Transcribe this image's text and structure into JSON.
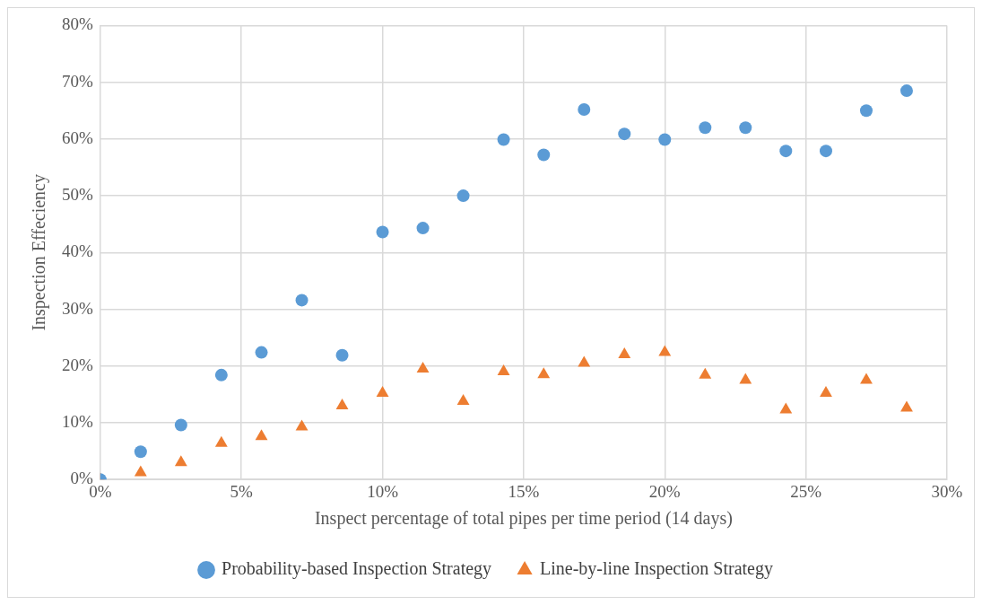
{
  "chart_data": {
    "type": "scatter",
    "xlabel": "Inspect percentage of total pipes per time period (14 days)",
    "ylabel": "Inspection Effeciency",
    "xlim": [
      0,
      30
    ],
    "xticks": [
      {
        "value": 0,
        "label": "0%"
      },
      {
        "value": 5,
        "label": "5%"
      },
      {
        "value": 10,
        "label": "10%"
      },
      {
        "value": 15,
        "label": "15%"
      },
      {
        "value": 20,
        "label": "20%"
      },
      {
        "value": 25,
        "label": "25%"
      },
      {
        "value": 30,
        "label": "30%"
      }
    ],
    "ylim": [
      0,
      80
    ],
    "yticks": [
      {
        "value": 0,
        "label": "0%"
      },
      {
        "value": 10,
        "label": "10%"
      },
      {
        "value": 20,
        "label": "20%"
      },
      {
        "value": 30,
        "label": "30%"
      },
      {
        "value": 40,
        "label": "40%"
      },
      {
        "value": 50,
        "label": "50%"
      },
      {
        "value": 60,
        "label": "60%"
      },
      {
        "value": 70,
        "label": "70%"
      },
      {
        "value": 80,
        "label": "80%"
      }
    ],
    "grid": true,
    "legend": "bottom",
    "x": [
      0,
      1.43,
      2.86,
      4.29,
      5.71,
      7.14,
      8.57,
      10,
      11.43,
      12.86,
      14.29,
      15.71,
      17.14,
      18.57,
      20,
      21.43,
      22.86,
      24.29,
      25.71,
      27.14,
      28.57
    ],
    "series": [
      {
        "name": "Probability-based Inspection Strategy",
        "color": "#5b9bd5",
        "marker": "circle",
        "values": [
          0,
          4.9,
          9.6,
          18.4,
          22.4,
          31.6,
          21.9,
          43.6,
          44.3,
          50,
          59.9,
          57.2,
          65.2,
          60.9,
          59.9,
          62,
          62,
          57.9,
          57.9,
          65,
          68.5
        ]
      },
      {
        "name": "Line-by-line Inspection Strategy",
        "color": "#ed7d31",
        "marker": "triangle",
        "values": [
          0,
          1.2,
          3,
          6.4,
          7.6,
          9.3,
          13,
          15.2,
          19.5,
          13.8,
          19,
          18.5,
          20.5,
          22,
          22.4,
          18.4,
          17.5,
          12.3,
          15.2,
          17.5,
          12.6
        ]
      }
    ]
  }
}
